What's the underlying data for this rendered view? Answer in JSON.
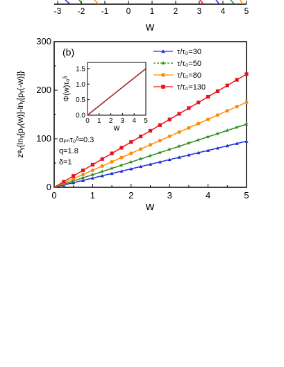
{
  "top_panel": {
    "x_tick_labels": [
      "-3",
      "-2",
      "-1",
      "0",
      "1",
      "2",
      "3",
      "4",
      "5"
    ],
    "xlabel": "w"
  },
  "chart_data": {
    "type": "line",
    "panel_label": "(b)",
    "xlabel": "w",
    "ylabel": "zᵠᵧ{lnᵧ[pᵧ(w)]-lnᵧ[pᵧ(-w)]}",
    "xlim": [
      0,
      5
    ],
    "ylim": [
      0,
      300
    ],
    "x_ticks": [
      0,
      1,
      2,
      3,
      4,
      5
    ],
    "y_ticks": [
      0,
      100,
      200,
      300
    ],
    "grid": false,
    "legend_position": "top-right",
    "series": [
      {
        "name": "τ/τ₀=30",
        "color": "#1f2fd8",
        "marker": "triangle",
        "dash": "solid",
        "x_range": [
          0,
          5
        ],
        "y_range": [
          0,
          95
        ]
      },
      {
        "name": "τ/τ₀=50",
        "color": "#2e8b22",
        "marker": "star",
        "dash": "dashed",
        "x_range": [
          0,
          5
        ],
        "y_range": [
          0,
          130
        ]
      },
      {
        "name": "τ/τ₀=80",
        "color": "#ff8c00",
        "marker": "circle",
        "dash": "solid",
        "x_range": [
          0,
          5
        ],
        "y_range": [
          0,
          175
        ]
      },
      {
        "name": "τ/τ₀=130",
        "color": "#e8141c",
        "marker": "square",
        "dash": "solid",
        "x_range": [
          0,
          5
        ],
        "y_range": [
          0,
          233
        ]
      }
    ],
    "annotation_lines": [
      "αₚₕτ₀ᵟ=0.3",
      "q=1.8",
      "δ=1"
    ],
    "inset": {
      "type": "line",
      "ylabel": "Φ(w)τ₀ᵟ",
      "xlabel": "w",
      "xlim": [
        0,
        5
      ],
      "ylim": [
        0,
        1.7
      ],
      "x_ticks": [
        0,
        1,
        2,
        3,
        4,
        5
      ],
      "y_ticks": [
        0.0,
        0.5,
        1.0,
        1.5
      ],
      "y_tick_labels": [
        "0.0",
        "0.5",
        "1.0",
        "1.5"
      ],
      "series": [
        {
          "x_range": [
            0,
            5
          ],
          "y_range": [
            0,
            1.5
          ],
          "color": "#9c2a2a"
        }
      ]
    }
  }
}
